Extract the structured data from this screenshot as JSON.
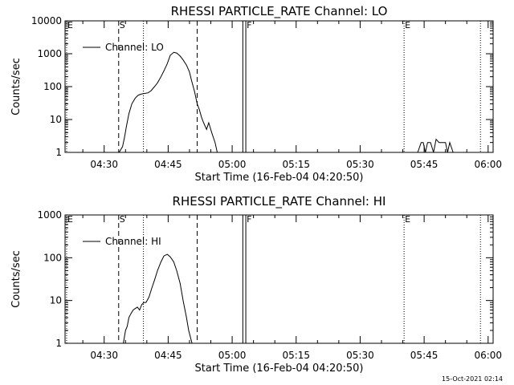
{
  "footer_timestamp": "15-Oct-2021 02:14",
  "chart_data": [
    {
      "type": "line",
      "title": "RHESSI PARTICLE_RATE Channel: LO",
      "xlabel": "Start Time (16-Feb-04 04:20:50)",
      "ylabel": "Counts/sec",
      "yscale": "log",
      "ylim": [
        1,
        10000
      ],
      "xlim_minutes": [
        20.83,
        121.17
      ],
      "y_tick_labels": [
        "1",
        "10",
        "100",
        "1000",
        "10000"
      ],
      "y_tick_values": [
        1,
        10,
        100,
        1000,
        10000
      ],
      "x_tick_labels": [
        "04:30",
        "04:45",
        "05:00",
        "05:15",
        "05:30",
        "05:45",
        "06:00"
      ],
      "x_tick_values": [
        30,
        45,
        60,
        75,
        90,
        105,
        120
      ],
      "legend": {
        "placement": "top-left",
        "entries": [
          "Channel: LO"
        ]
      },
      "series": [
        {
          "name": "Channel: LO",
          "x": [
            33.5,
            34.3,
            34.8,
            35.2,
            35.8,
            36.5,
            37.3,
            38,
            38.8,
            39.5,
            40.3,
            41,
            41.8,
            42.5,
            43.3,
            44,
            44.8,
            45.5,
            46.3,
            47,
            47.8,
            48.5,
            49.3,
            50,
            50.5,
            51.2,
            51.8,
            52.3,
            52.8,
            53.3,
            54,
            54.5,
            55.2,
            56,
            56.5
          ],
          "y": [
            1,
            1.5,
            3,
            6,
            15,
            30,
            45,
            55,
            60,
            62,
            65,
            75,
            100,
            130,
            200,
            300,
            500,
            900,
            1100,
            1050,
            850,
            650,
            450,
            280,
            150,
            70,
            30,
            20,
            12,
            8,
            5,
            8,
            4,
            2,
            1
          ],
          "segments": [
            {
              "x": [
                103.5,
                104.3,
                104.8,
                105.3,
                105.8,
                106.5,
                107.2,
                107.8,
                108.5,
                109.2,
                110,
                110.5,
                111,
                111.8
              ],
              "y": [
                1,
                2,
                2,
                1,
                2,
                2,
                1,
                2.5,
                2,
                2,
                2,
                1,
                2,
                1
              ]
            }
          ]
        }
      ],
      "vertical_markers": [
        {
          "x": 21.2,
          "label": "E",
          "style": "dotted"
        },
        {
          "x": 33.4,
          "label": "S",
          "style": "dashed"
        },
        {
          "x": 39.2,
          "style": "dotted"
        },
        {
          "x": 51.8,
          "style": "dashed"
        },
        {
          "x": 62.5,
          "style": "solid"
        },
        {
          "x": 63.2,
          "label": "F",
          "style": "solid"
        },
        {
          "x": 100.3,
          "label": "E",
          "style": "dotted"
        },
        {
          "x": 118.2,
          "style": "dotted"
        }
      ]
    },
    {
      "type": "line",
      "title": "RHESSI PARTICLE_RATE Channel: HI",
      "xlabel": "Start Time (16-Feb-04 04:20:50)",
      "ylabel": "Counts/sec",
      "yscale": "log",
      "ylim": [
        1,
        1000
      ],
      "xlim_minutes": [
        20.83,
        121.17
      ],
      "y_tick_labels": [
        "1",
        "10",
        "100",
        "1000"
      ],
      "y_tick_values": [
        1,
        10,
        100,
        1000
      ],
      "x_tick_labels": [
        "04:30",
        "04:45",
        "05:00",
        "05:15",
        "05:30",
        "05:45",
        "06:00"
      ],
      "x_tick_values": [
        30,
        45,
        60,
        75,
        90,
        105,
        120
      ],
      "legend": {
        "placement": "top-left",
        "entries": [
          "Channel: HI"
        ]
      },
      "series": [
        {
          "name": "Channel: HI",
          "x": [
            34.5,
            35,
            35.4,
            35.8,
            36.3,
            36.8,
            37.3,
            37.8,
            38.3,
            38.8,
            39.3,
            39.8,
            40.5,
            41.2,
            41.8,
            42.5,
            43.3,
            44,
            44.8,
            45.5,
            46.3,
            47,
            47.8,
            48.5,
            49.3,
            49.8,
            50.3,
            50.6
          ],
          "y": [
            1,
            2,
            2.5,
            4,
            5,
            6,
            6.5,
            7,
            6,
            8,
            9,
            9,
            12,
            20,
            30,
            50,
            80,
            110,
            120,
            105,
            80,
            50,
            25,
            10,
            4,
            2,
            1.3,
            1
          ]
        }
      ],
      "vertical_markers": [
        {
          "x": 21.2,
          "label": "E",
          "style": "dotted"
        },
        {
          "x": 33.4,
          "label": "S",
          "style": "dashed"
        },
        {
          "x": 39.2,
          "style": "dotted"
        },
        {
          "x": 51.8,
          "style": "dashed"
        },
        {
          "x": 62.5,
          "style": "solid"
        },
        {
          "x": 63.2,
          "label": "F",
          "style": "solid"
        },
        {
          "x": 100.3,
          "label": "E",
          "style": "dotted"
        },
        {
          "x": 118.2,
          "style": "dotted"
        }
      ]
    }
  ]
}
